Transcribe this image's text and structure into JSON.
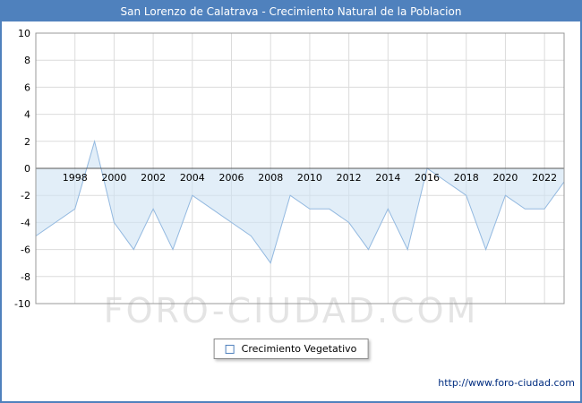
{
  "window": {
    "title": "San Lorenzo de Calatrava - Crecimiento Natural de la Poblacion"
  },
  "watermark": "FORO-CIUDAD.COM",
  "legend": {
    "label": "Crecimiento Vegetativo"
  },
  "footer": {
    "url": "http://www.foro-ciudad.com"
  },
  "theme": {
    "title_bar_bg": "#4f81bd",
    "title_text": "#ffffff",
    "frame_border": "#4f81bd",
    "grid_color": "#dcdcdc",
    "plot_border": "#999999",
    "zero_axis": "#555555",
    "area_fill": "#cfe2f4",
    "area_opacity": 0.6,
    "line_color": "#93b9e0",
    "axis_text": "#000000",
    "watermark_color": "#e4e4e4",
    "legend_marker_border": "#4f81bd",
    "url_color": "#002d80"
  },
  "chart_data": {
    "type": "area",
    "title": "San Lorenzo de Calatrava - Crecimiento Natural de la Poblacion",
    "xlabel": "",
    "ylabel": "",
    "x_range": [
      1996,
      2023
    ],
    "ylim": [
      -10,
      10
    ],
    "baseline": 0,
    "grid": true,
    "legend_position": "bottom",
    "x_ticks": [
      1998,
      2000,
      2002,
      2004,
      2006,
      2008,
      2010,
      2012,
      2014,
      2016,
      2018,
      2020,
      2022
    ],
    "y_ticks": [
      -10,
      -8,
      -6,
      -4,
      -2,
      0,
      2,
      4,
      6,
      8,
      10
    ],
    "x": [
      1996,
      1997,
      1998,
      1999,
      2000,
      2001,
      2002,
      2003,
      2004,
      2005,
      2006,
      2007,
      2008,
      2009,
      2010,
      2011,
      2012,
      2013,
      2014,
      2015,
      2016,
      2017,
      2018,
      2019,
      2020,
      2021,
      2022,
      2023
    ],
    "series": [
      {
        "name": "Crecimiento Vegetativo",
        "values": [
          -5,
          -4,
          -3,
          2,
          -4,
          -6,
          -3,
          -6,
          -2,
          -3,
          -4,
          -5,
          -7,
          -2,
          -3,
          -3,
          -4,
          -6,
          -3,
          -6,
          0,
          -1,
          -2,
          -6,
          -2,
          -3,
          -3,
          -1
        ]
      }
    ]
  }
}
